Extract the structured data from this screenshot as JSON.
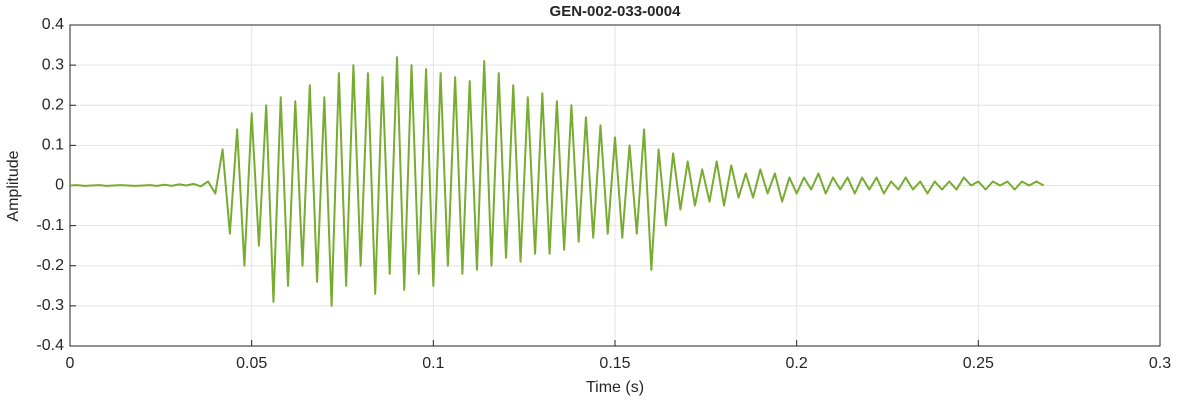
{
  "chart_data": {
    "type": "line",
    "title": "GEN-002-033-0004",
    "x_label": "Time (s)",
    "y_label": "Amplitude",
    "x": [
      0,
      0.002,
      0.004,
      0.006,
      0.008,
      0.01,
      0.012,
      0.014,
      0.016,
      0.018,
      0.02,
      0.022,
      0.024,
      0.026,
      0.028,
      0.03,
      0.032,
      0.034,
      0.036,
      0.038,
      0.04,
      0.042,
      0.044,
      0.046,
      0.048,
      0.05,
      0.052,
      0.054,
      0.056,
      0.058,
      0.06,
      0.062,
      0.064,
      0.066,
      0.068,
      0.07,
      0.072,
      0.074,
      0.076,
      0.078,
      0.08,
      0.082,
      0.084,
      0.086,
      0.088,
      0.09,
      0.092,
      0.094,
      0.096,
      0.098,
      0.1,
      0.102,
      0.104,
      0.106,
      0.108,
      0.11,
      0.112,
      0.114,
      0.116,
      0.118,
      0.12,
      0.122,
      0.124,
      0.126,
      0.128,
      0.13,
      0.132,
      0.134,
      0.136,
      0.138,
      0.14,
      0.142,
      0.144,
      0.146,
      0.148,
      0.15,
      0.152,
      0.154,
      0.156,
      0.158,
      0.16,
      0.162,
      0.164,
      0.166,
      0.168,
      0.17,
      0.172,
      0.174,
      0.176,
      0.178,
      0.18,
      0.182,
      0.184,
      0.186,
      0.188,
      0.19,
      0.192,
      0.194,
      0.196,
      0.198,
      0.2,
      0.202,
      0.204,
      0.206,
      0.208,
      0.21,
      0.212,
      0.214,
      0.216,
      0.218,
      0.22,
      0.222,
      0.224,
      0.226,
      0.228,
      0.23,
      0.232,
      0.234,
      0.236,
      0.238,
      0.24,
      0.242,
      0.244,
      0.246,
      0.248,
      0.25,
      0.252,
      0.254,
      0.256,
      0.258,
      0.26,
      0.262,
      0.264,
      0.266,
      0.268
    ],
    "series": [
      {
        "color": "#77ac30",
        "values": [
          0,
          0.001,
          -0.001,
          0,
          0.001,
          -0.001,
          0,
          0.001,
          0,
          -0.001,
          0,
          0.001,
          -0.001,
          0.002,
          -0.001,
          0.003,
          0,
          0.004,
          -0.002,
          0.01,
          -0.02,
          0.09,
          -0.12,
          0.14,
          -0.2,
          0.18,
          -0.15,
          0.2,
          -0.29,
          0.22,
          -0.25,
          0.21,
          -0.2,
          0.25,
          -0.24,
          0.22,
          -0.3,
          0.28,
          -0.25,
          0.3,
          -0.2,
          0.28,
          -0.27,
          0.27,
          -0.22,
          0.32,
          -0.26,
          0.3,
          -0.22,
          0.29,
          -0.25,
          0.28,
          -0.2,
          0.27,
          -0.22,
          0.26,
          -0.21,
          0.31,
          -0.2,
          0.28,
          -0.18,
          0.25,
          -0.19,
          0.22,
          -0.17,
          0.23,
          -0.17,
          0.21,
          -0.16,
          0.2,
          -0.14,
          0.17,
          -0.13,
          0.15,
          -0.12,
          0.12,
          -0.13,
          0.1,
          -0.12,
          0.14,
          -0.21,
          0.09,
          -0.1,
          0.08,
          -0.06,
          0.06,
          -0.05,
          0.04,
          -0.04,
          0.06,
          -0.05,
          0.05,
          -0.03,
          0.03,
          -0.03,
          0.04,
          -0.02,
          0.03,
          -0.04,
          0.02,
          -0.02,
          0.02,
          -0.01,
          0.03,
          -0.02,
          0.02,
          -0.01,
          0.02,
          -0.02,
          0.02,
          -0.01,
          0.02,
          -0.02,
          0.01,
          -0.01,
          0.02,
          -0.01,
          0.01,
          -0.02,
          0.01,
          -0.01,
          0.01,
          -0.01,
          0.02,
          0,
          0.01,
          -0.01,
          0.01,
          0,
          0.01,
          -0.01,
          0.01,
          0,
          0.01,
          0
        ]
      }
    ],
    "xlim": [
      0,
      0.3
    ],
    "xticks": [
      0,
      0.05,
      0.1,
      0.15,
      0.2,
      0.25,
      0.3
    ],
    "ylim": [
      -0.4,
      0.4
    ],
    "yticks": [
      -0.4,
      -0.3,
      -0.2,
      -0.1,
      0,
      0.1,
      0.2,
      0.3,
      0.4
    ],
    "grid": true
  }
}
